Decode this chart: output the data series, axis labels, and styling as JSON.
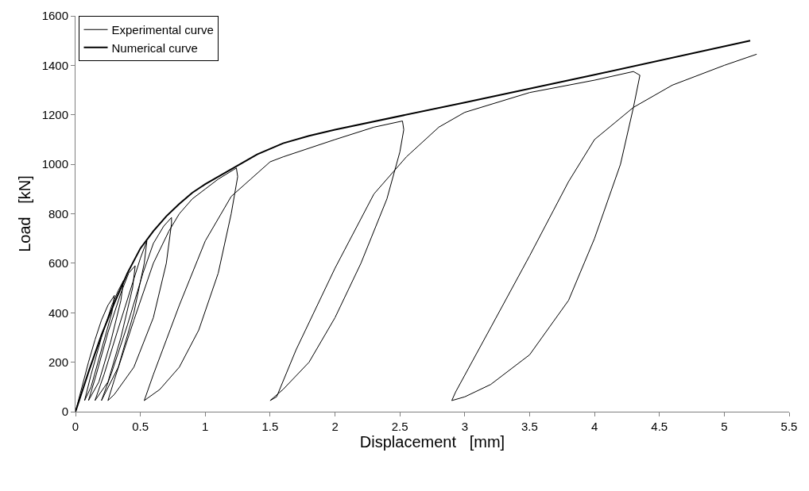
{
  "chart_data": {
    "type": "line",
    "xlabel": "Displacement   [mm]",
    "ylabel": "Load   [kN]",
    "xlim": [
      0,
      5.5
    ],
    "xticks": [
      0,
      0.5,
      1,
      1.5,
      2,
      2.5,
      3,
      3.5,
      4,
      4.5,
      5,
      5.5
    ],
    "ylim": [
      0,
      1600
    ],
    "yticks": [
      0,
      200,
      400,
      600,
      800,
      1000,
      1200,
      1400,
      1600
    ],
    "legend": "top left",
    "marker": "none",
    "line_style": "solid",
    "series": [
      {
        "name": "Experimental curve",
        "color": "#000000",
        "x": [
          0,
          0.05,
          0.1,
          0.15,
          0.2,
          0.25,
          0.3,
          0.28,
          0.2,
          0.12,
          0.07,
          0.12,
          0.2,
          0.28,
          0.33,
          0.37,
          0.35,
          0.27,
          0.18,
          0.1,
          0.16,
          0.25,
          0.35,
          0.41,
          0.46,
          0.44,
          0.35,
          0.25,
          0.15,
          0.22,
          0.32,
          0.44,
          0.5,
          0.55,
          0.53,
          0.45,
          0.33,
          0.2,
          0.28,
          0.4,
          0.52,
          0.6,
          0.68,
          0.74,
          0.74,
          0.7,
          0.6,
          0.45,
          0.3,
          0.25,
          0.3,
          0.45,
          0.6,
          0.72,
          0.8,
          0.9,
          1.0,
          1.1,
          1.24,
          1.25,
          1.2,
          1.1,
          0.95,
          0.8,
          0.65,
          0.53,
          0.6,
          0.8,
          1.0,
          1.2,
          1.35,
          1.5,
          1.6,
          2.0,
          2.3,
          2.52,
          2.53,
          2.5,
          2.4,
          2.2,
          2.0,
          1.8,
          1.6,
          1.5,
          1.55,
          1.7,
          2.0,
          2.3,
          2.55,
          2.8,
          3.0,
          3.5,
          4.0,
          4.3,
          4.35,
          4.3,
          4.2,
          4.0,
          3.8,
          3.5,
          3.2,
          3.0,
          2.9,
          2.93,
          3.2,
          3.5,
          3.8,
          4.0,
          4.3,
          4.6,
          5.0,
          5.25
        ],
        "values": [
          0,
          100,
          200,
          290,
          370,
          430,
          470,
          400,
          250,
          100,
          45,
          150,
          300,
          430,
          490,
          530,
          450,
          280,
          120,
          45,
          150,
          320,
          480,
          560,
          590,
          500,
          300,
          120,
          45,
          150,
          320,
          520,
          620,
          690,
          600,
          400,
          180,
          45,
          160,
          350,
          560,
          680,
          750,
          785,
          760,
          600,
          380,
          180,
          70,
          45,
          130,
          370,
          600,
          730,
          800,
          860,
          900,
          940,
          985,
          950,
          800,
          560,
          330,
          180,
          90,
          45,
          150,
          430,
          690,
          870,
          940,
          1010,
          1030,
          1100,
          1150,
          1175,
          1140,
          1050,
          860,
          600,
          380,
          200,
          90,
          45,
          60,
          250,
          580,
          880,
          1030,
          1150,
          1210,
          1290,
          1340,
          1375,
          1360,
          1230,
          1000,
          700,
          450,
          230,
          110,
          60,
          45,
          80,
          340,
          630,
          930,
          1100,
          1230,
          1320,
          1400,
          1445
        ]
      },
      {
        "name": "Numerical curve",
        "color": "#000000",
        "x": [
          0,
          0.1,
          0.2,
          0.3,
          0.4,
          0.5,
          0.6,
          0.7,
          0.8,
          0.9,
          1.0,
          1.2,
          1.4,
          1.6,
          1.8,
          2.0,
          3.0,
          4.0,
          5.2
        ],
        "values": [
          0,
          160,
          310,
          440,
          560,
          660,
          730,
          790,
          840,
          885,
          920,
          980,
          1040,
          1085,
          1115,
          1140,
          1250,
          1362,
          1500
        ]
      }
    ]
  }
}
